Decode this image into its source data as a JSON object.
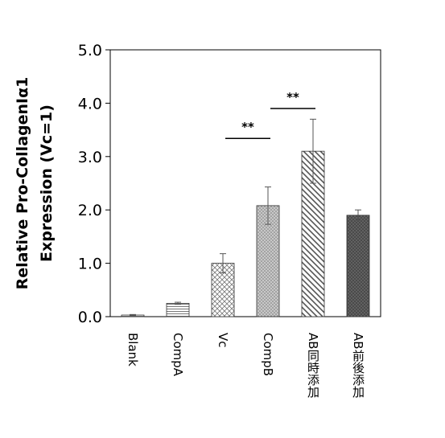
{
  "chart_data": {
    "type": "bar",
    "categories": [
      "Blank",
      "CompA",
      "Vc",
      "CompB",
      "AB同時添加",
      "AB前後添加"
    ],
    "values": [
      0.03,
      0.25,
      1.0,
      2.08,
      3.1,
      1.9
    ],
    "errors": [
      0.01,
      0.02,
      0.18,
      0.35,
      0.6,
      0.1
    ],
    "ylabel_line1": "Relative Pro-CollagenⅠα1",
    "ylabel_line2": "Expression (Vc=1)",
    "ylim": [
      0.0,
      5.0
    ],
    "yticks": [
      "0.0",
      "1.0",
      "2.0",
      "3.0",
      "4.0",
      "5.0"
    ],
    "grid": false,
    "legend": "none",
    "significance": [
      {
        "from": "Vc",
        "to": "CompB",
        "label": "**",
        "y": 3.34
      },
      {
        "from": "CompB",
        "to": "AB同時添加",
        "label": "**",
        "y": 3.9
      }
    ],
    "patterns": [
      "horizontal-lines",
      "horizontal-lines",
      "crosshatch",
      "dots",
      "diagonal",
      "dark-dots"
    ]
  }
}
